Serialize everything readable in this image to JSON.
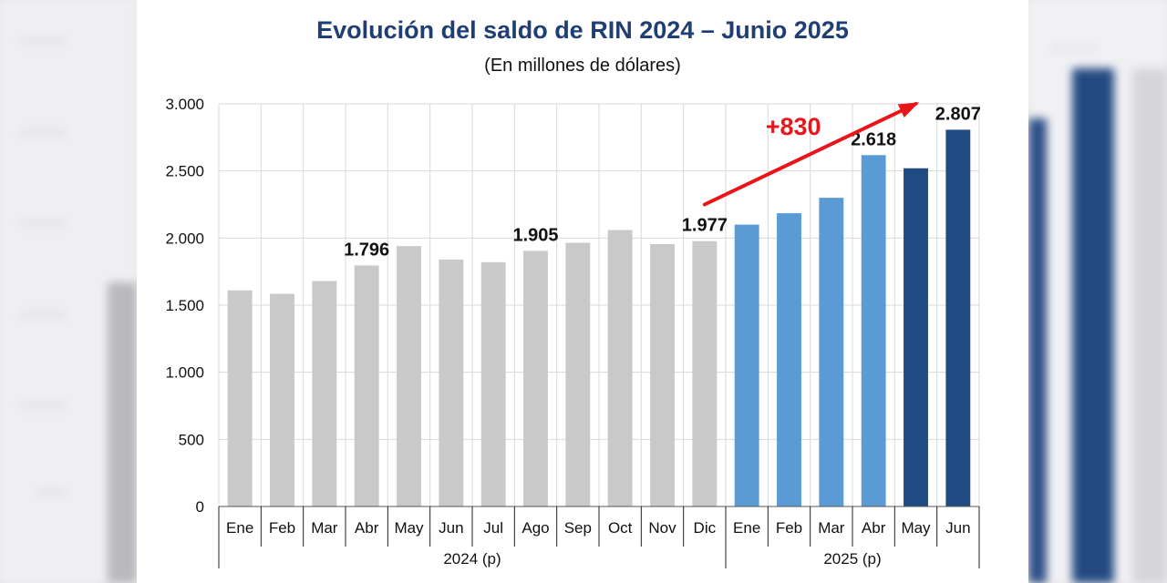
{
  "title": "Evolución del saldo de RIN 2024 – Junio 2025",
  "subtitle": "(En millones de dólares)",
  "colors": {
    "title": "#1f3e74",
    "bar_2024": "#c9c9c9",
    "bar_2025_light": "#5b9bd5",
    "bar_2025_dark": "#1f4a82",
    "arrow": "#e8161b",
    "grid": "#d9d9d9"
  },
  "chart_data": {
    "type": "bar",
    "ylim": [
      0,
      3000
    ],
    "yticks": [
      0,
      500,
      1000,
      1500,
      2000,
      2500,
      3000
    ],
    "ytick_labels": [
      "0",
      "500",
      "1.000",
      "1.500",
      "2.000",
      "2.500",
      "3.000"
    ],
    "grid": true,
    "categories": [
      "Ene",
      "Feb",
      "Mar",
      "Abr",
      "May",
      "Jun",
      "Jul",
      "Ago",
      "Sep",
      "Oct",
      "Nov",
      "Dic",
      "Ene",
      "Feb",
      "Mar",
      "Abr",
      "May",
      "Jun"
    ],
    "values": [
      1610,
      1585,
      1680,
      1796,
      1940,
      1840,
      1820,
      1905,
      1965,
      2060,
      1955,
      1977,
      2100,
      2185,
      2300,
      2618,
      2520,
      2807
    ],
    "bar_styles": [
      "2024",
      "2024",
      "2024",
      "2024",
      "2024",
      "2024",
      "2024",
      "2024",
      "2024",
      "2024",
      "2024",
      "2024",
      "2025_light",
      "2025_light",
      "2025_light",
      "2025_light",
      "2025_dark",
      "2025_dark"
    ],
    "data_labels": [
      {
        "index": 3,
        "text": "1.796"
      },
      {
        "index": 7,
        "text": "1.905"
      },
      {
        "index": 11,
        "text": "1.977"
      },
      {
        "index": 15,
        "text": "2.618"
      },
      {
        "index": 17,
        "text": "2.807"
      }
    ],
    "groups": [
      {
        "label": "2024 (p)",
        "start": 0,
        "end": 11
      },
      {
        "label": "2025 (p)",
        "start": 12,
        "end": 17
      }
    ],
    "annotation": {
      "text": "+830",
      "from_index": 11,
      "from_value": 2250,
      "to_index": 16,
      "to_value": 3000
    }
  }
}
